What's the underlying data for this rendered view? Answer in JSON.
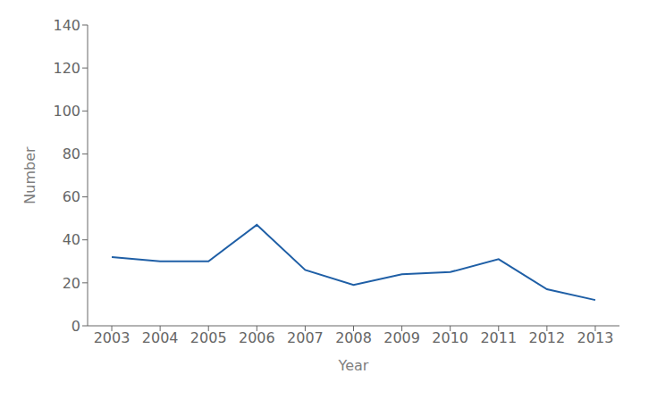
{
  "chart_data": {
    "type": "line",
    "x": [
      2003,
      2004,
      2005,
      2006,
      2007,
      2008,
      2009,
      2010,
      2011,
      2012,
      2013
    ],
    "values": [
      32,
      30,
      30,
      47,
      26,
      19,
      24,
      25,
      31,
      17,
      12
    ],
    "color": "#1F5FA6",
    "xlabel": "Year",
    "ylabel": "Number",
    "xlim": [
      2002.5,
      2013.5
    ],
    "ylim": [
      0,
      140
    ],
    "xticks": [
      2003,
      2004,
      2005,
      2006,
      2007,
      2008,
      2009,
      2010,
      2011,
      2012,
      2013
    ],
    "yticks": [
      0,
      20,
      40,
      60,
      80,
      100,
      120,
      140
    ],
    "grid": false
  }
}
